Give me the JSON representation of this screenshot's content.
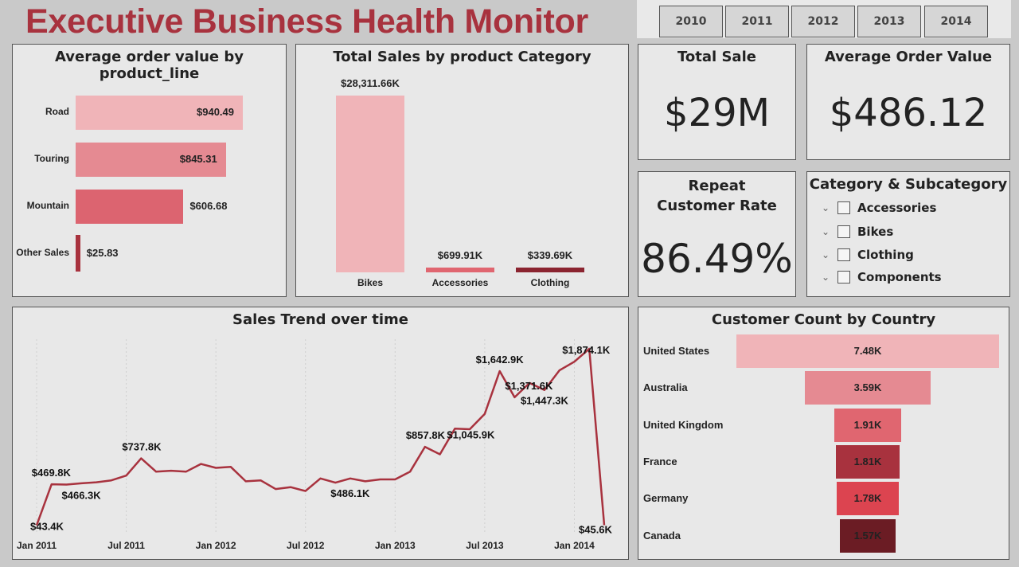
{
  "title": "Executive Business Health Monitor",
  "years": [
    "2010",
    "2011",
    "2012",
    "2013",
    "2014"
  ],
  "kpis": {
    "total_sale": {
      "label": "Total Sale",
      "value": "$29M"
    },
    "avg_order": {
      "label": "Average Order Value",
      "value": "$486.12"
    },
    "repeat": {
      "label": "Repeat Customer Rate",
      "value": "86.49%"
    }
  },
  "category_slicer": {
    "title": "Category & Subcategory",
    "items": [
      "Accessories",
      "Bikes",
      "Clothing",
      "Components"
    ]
  },
  "colors": {
    "accent": "#a8323e",
    "light": "#f0b4b8",
    "mid": "#e58a92",
    "deep": "#dc6470",
    "line": "#a8323e"
  },
  "chart_data": [
    {
      "type": "bar",
      "orientation": "horizontal",
      "title": "Average order value by product_line",
      "categories": [
        "Road",
        "Touring",
        "Mountain",
        "Other Sales"
      ],
      "values": [
        940.49,
        845.31,
        606.68,
        25.83
      ],
      "labels": [
        "$940.49",
        "$845.31",
        "$606.68",
        "$25.83"
      ],
      "colors": [
        "#f0b4b8",
        "#e58a92",
        "#dc6470",
        "#a8323e"
      ]
    },
    {
      "type": "bar",
      "title": "Total Sales by product Category",
      "categories": [
        "Bikes",
        "Accessories",
        "Clothing"
      ],
      "values": [
        28311.66,
        699.91,
        339.69
      ],
      "labels": [
        "$28,311.66K",
        "$699.91K",
        "$339.69K"
      ],
      "colors": [
        "#f0b4b8",
        "#e06670",
        "#8b2430"
      ]
    },
    {
      "type": "line",
      "title": "Sales Trend over time",
      "x_ticks": [
        "Jan 2011",
        "Jul 2011",
        "Jan 2012",
        "Jul 2012",
        "Jan 2013",
        "Jul 2013",
        "Jan 2014"
      ],
      "values": [
        43.4,
        469.8,
        466.3,
        480,
        490,
        510,
        560,
        737.8,
        600,
        610,
        600,
        680,
        640,
        650,
        500,
        510,
        420,
        440,
        400,
        530,
        486.1,
        530,
        500,
        520,
        520,
        600,
        857.8,
        780,
        1045.9,
        1040,
        1200,
        1642.9,
        1371.6,
        1520,
        1447.3,
        1650,
        1740,
        1874.1,
        45.6
      ],
      "point_labels": [
        {
          "i": 0,
          "text": "$43.4K"
        },
        {
          "i": 1,
          "text": "$469.8K"
        },
        {
          "i": 2,
          "text": "$466.3K"
        },
        {
          "i": 7,
          "text": "$737.8K"
        },
        {
          "i": 20,
          "text": "$486.1K"
        },
        {
          "i": 26,
          "text": "$857.8K"
        },
        {
          "i": 28,
          "text": "$1,045.9K"
        },
        {
          "i": 31,
          "text": "$1,642.9K"
        },
        {
          "i": 32,
          "text": "$1,371.6K"
        },
        {
          "i": 34,
          "text": "$1,447.3K"
        },
        {
          "i": 37,
          "text": "$1,874.1K"
        },
        {
          "i": 38,
          "text": "$45.6K"
        }
      ]
    },
    {
      "type": "bar",
      "orientation": "funnel",
      "title": "Customer Count by Country",
      "categories": [
        "United States",
        "Australia",
        "United Kingdom",
        "France",
        "Germany",
        "Canada"
      ],
      "values": [
        7.48,
        3.59,
        1.91,
        1.81,
        1.78,
        1.57
      ],
      "labels": [
        "7.48K",
        "3.59K",
        "1.91K",
        "1.81K",
        "1.78K",
        "1.57K"
      ],
      "colors": [
        "#f0b4b8",
        "#e58a92",
        "#e06670",
        "#a8323e",
        "#dc4450",
        "#6b1c24"
      ]
    }
  ]
}
